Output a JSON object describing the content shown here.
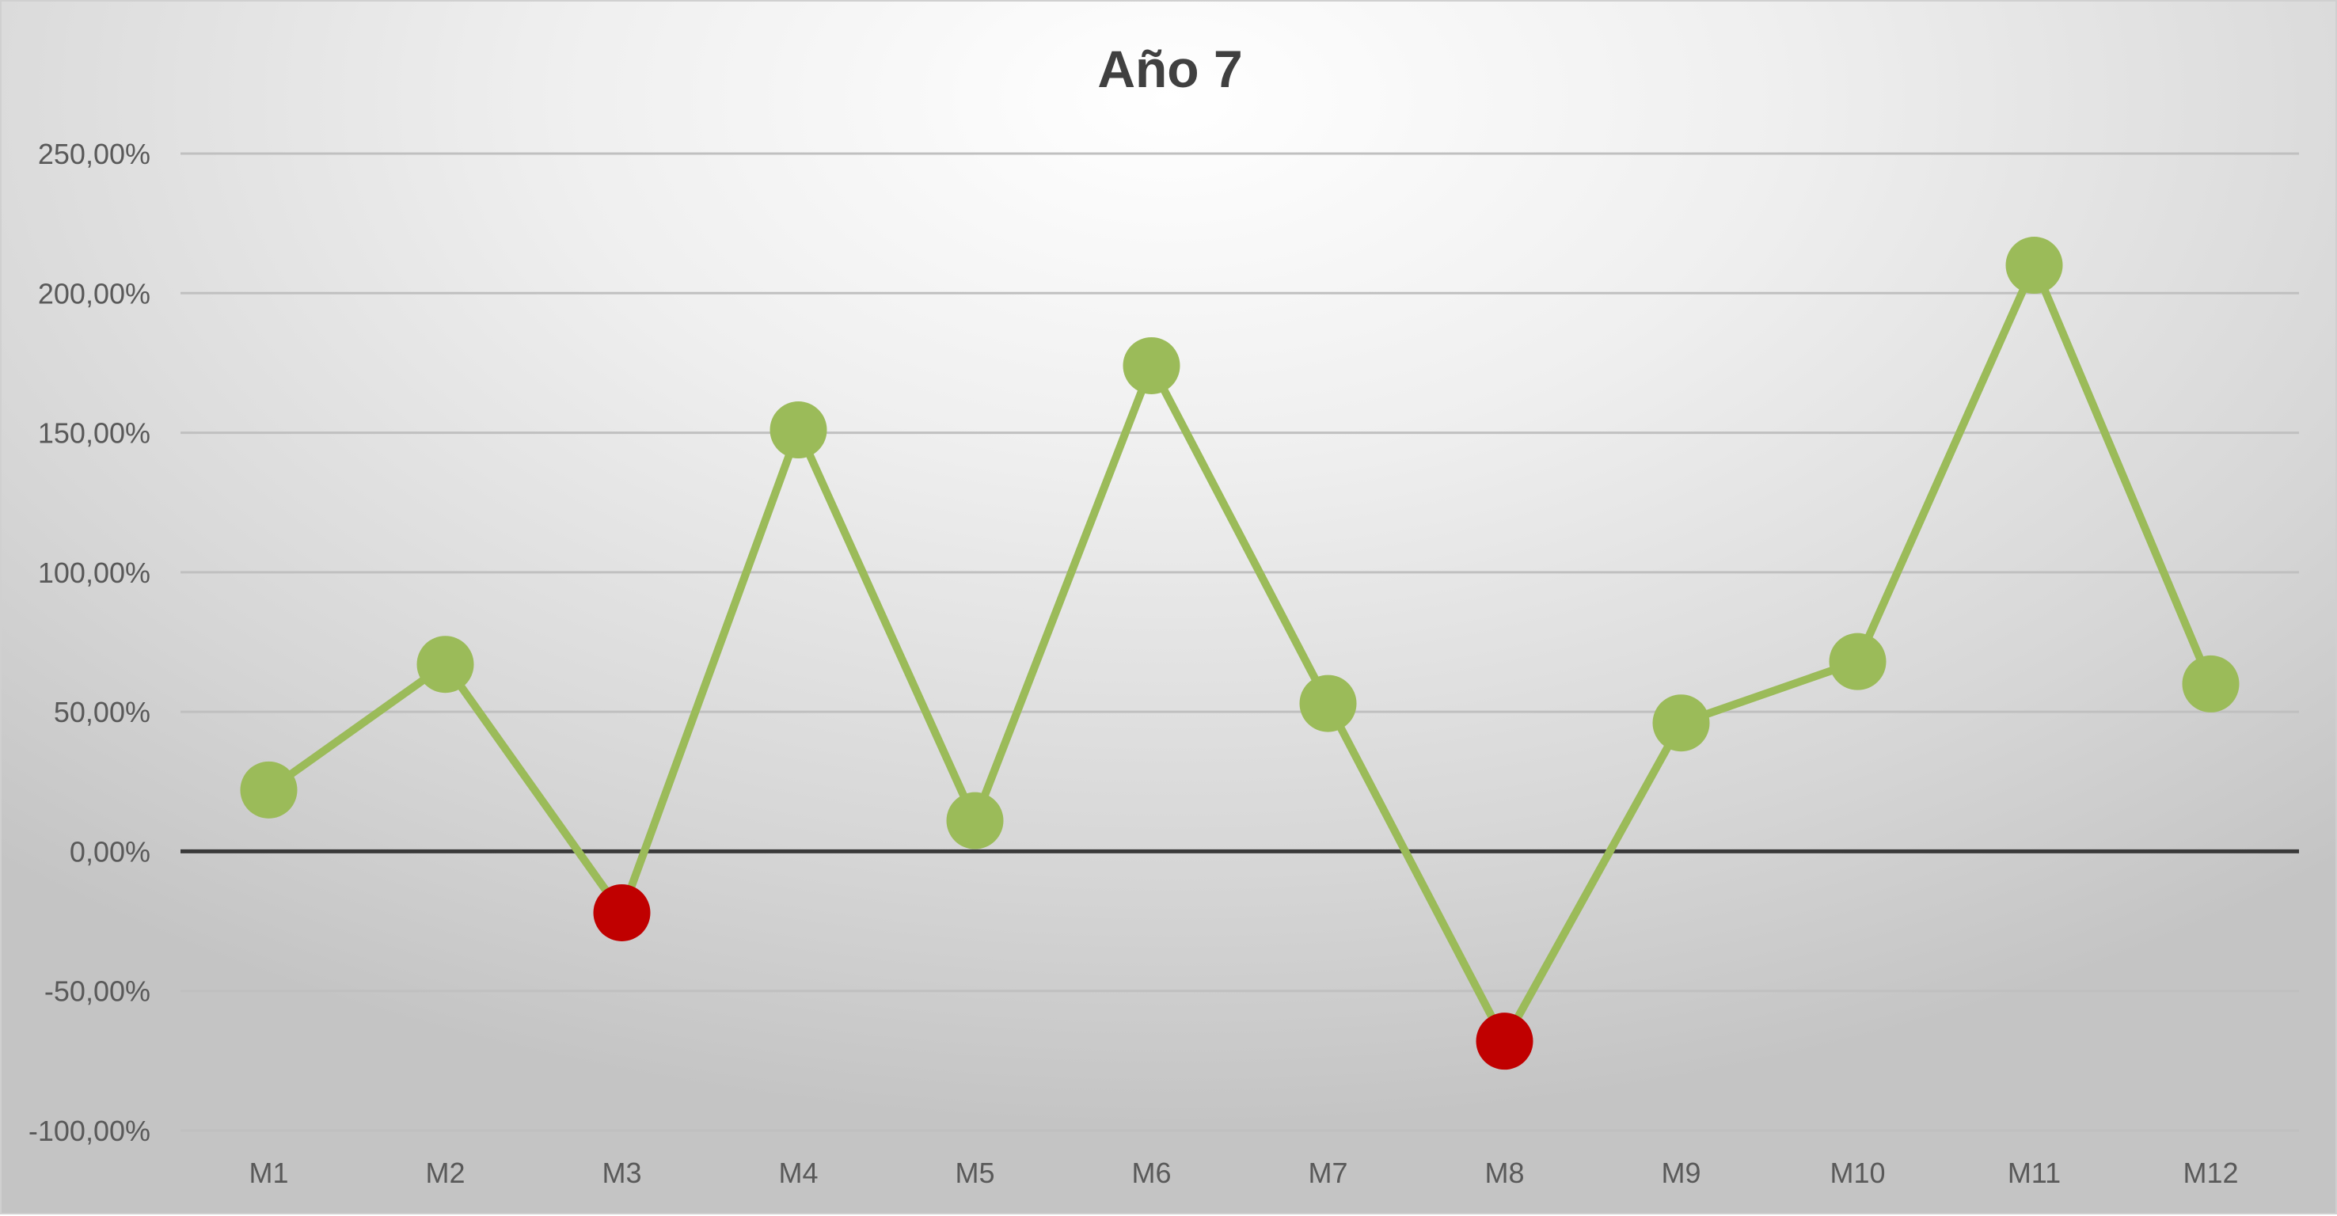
{
  "chart_data": {
    "type": "line",
    "title": "Año 7",
    "xlabel": "",
    "ylabel": "",
    "categories": [
      "M1",
      "M2",
      "M3",
      "M4",
      "M5",
      "M6",
      "M7",
      "M8",
      "M9",
      "M10",
      "M11",
      "M12"
    ],
    "series": [
      {
        "values": [
          22,
          67,
          -22,
          151,
          11,
          174,
          53,
          -68,
          46,
          68,
          210,
          60
        ],
        "color": "#9bbb59"
      }
    ],
    "negative_marker_color": "#c00000",
    "ylim": [
      -100,
      250
    ],
    "y_ticks": [
      250,
      200,
      150,
      100,
      50,
      0,
      -50,
      -100
    ],
    "y_tick_labels": [
      "250,00%",
      "200,00%",
      "150,00%",
      "100,00%",
      "50,00%",
      "0,00%",
      "-50,00%",
      "-100,00%"
    ],
    "grid": true,
    "legend": "none"
  }
}
